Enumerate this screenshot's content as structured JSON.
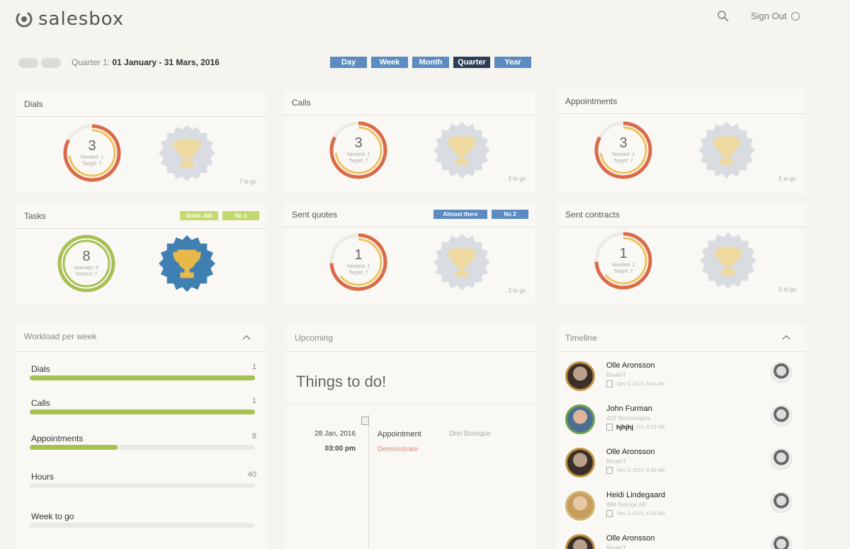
{
  "app": {
    "name": "salesbox",
    "sign_out": "Sign Out"
  },
  "toolbar": {
    "period_prefix": "Quarter 1:",
    "period_range": "01 January - 31 Mars, 2016",
    "periods": [
      "Day",
      "Week",
      "Month",
      "Quarter",
      "Year"
    ],
    "active_period": "Quarter"
  },
  "cards": [
    {
      "title": "Dials",
      "value": "3",
      "line1": "Needed: 1",
      "line2": "Target: 7",
      "togo": "7 to go",
      "progress": 0.43,
      "achieved": false
    },
    {
      "title": "Calls",
      "value": "3",
      "line1": "Needed: 1",
      "line2": "Target: 7",
      "togo": "2 to go",
      "progress": 0.43,
      "achieved": false
    },
    {
      "title": "Appointments",
      "value": "3",
      "line1": "Needed: 1",
      "line2": "Target: 7",
      "togo": "5 to go",
      "progress": 0.43,
      "achieved": false
    },
    {
      "title": "Tasks",
      "value": "8",
      "line1": "Average: 5",
      "line2": "Record: 7",
      "togo": "",
      "progress": 1.0,
      "achieved": true,
      "badges": [
        "Great Job",
        "No 1"
      ]
    },
    {
      "title": "Sent quotes",
      "value": "1",
      "line1": "Needed: 1",
      "line2": "Target: 7",
      "togo": "2 to go",
      "progress": 0.14,
      "achieved": false,
      "badges": [
        "Almost there",
        "No 2"
      ]
    },
    {
      "title": "Sent contracts",
      "value": "1",
      "line1": "Needed: 1",
      "line2": "Target: 7",
      "togo": "5 to go",
      "progress": 0.14,
      "achieved": false
    }
  ],
  "workload": {
    "title": "Workload per week",
    "rows": [
      {
        "label": "Dials",
        "value": "1",
        "fill": 1.0
      },
      {
        "label": "Calls",
        "value": "1",
        "fill": 1.0
      },
      {
        "label": "Appointments",
        "value": "8",
        "fill": 0.39
      },
      {
        "label": "Hours",
        "value": "40",
        "fill": 0
      },
      {
        "label": "Week to go",
        "value": "",
        "fill": 0
      }
    ]
  },
  "upcoming": {
    "title": "Upcoming",
    "heading": "Things to do!",
    "date": "28 Jan, 2016",
    "time": "03:00 pm",
    "type": "Appointment",
    "contact": "Don Bourque",
    "action": "Demonstrate"
  },
  "timeline": {
    "title": "Timeline",
    "items": [
      {
        "name": "Olle Aronsson",
        "company": "BreakIT",
        "date": "Nov 3, 2015, 8:41 AM"
      },
      {
        "name": "John Furman",
        "company": "423 Technologies",
        "date": "Nov 3, 2015, 8:15 AM",
        "note": "hjhjhj"
      },
      {
        "name": "Olle Aronsson",
        "company": "BreakIT",
        "date": "Nov 3, 2015, 8:38 AM"
      },
      {
        "name": "Heidi Lindegaard",
        "company": "IBM Sverige AB",
        "date": "Nov 3, 2015, 6:34 AM"
      },
      {
        "name": "Olle Aronsson",
        "company": "BreakIT",
        "date": ""
      }
    ]
  },
  "colors": {
    "ring_outer": "#d96a4a",
    "ring_inner": "#f0c35a",
    "ring_good": "#a6c052",
    "badge_blue": "#5b8bc0",
    "badge_green": "#c5d86f"
  }
}
